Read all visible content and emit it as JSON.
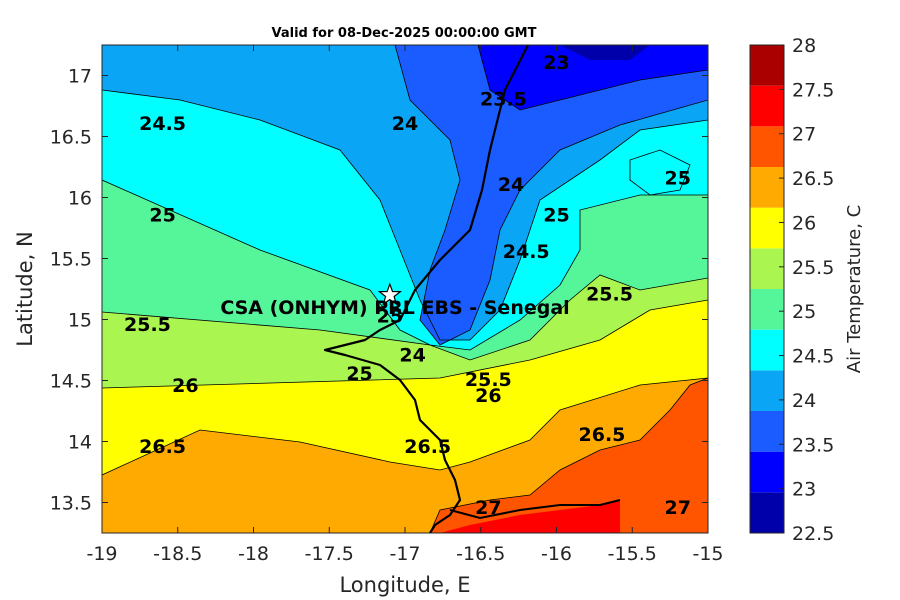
{
  "chart_data": {
    "type": "contour",
    "title": "Valid for 08-Dec-2025 00:00:00 GMT",
    "xlabel": "Longitude, E",
    "ylabel": "Latitude, N",
    "xlim": [
      -19,
      -15
    ],
    "ylim": [
      13.25,
      17.25
    ],
    "xticks": [
      "-19",
      "-18.5",
      "-18",
      "-17.5",
      "-17",
      "-16.5",
      "-16",
      "-15.5",
      "-15"
    ],
    "yticks": [
      "17",
      "16.5",
      "16",
      "15.5",
      "15",
      "14.5",
      "14",
      "13.5"
    ],
    "colorbar": {
      "label": "Air Temperature, C",
      "range": [
        22.5,
        28
      ],
      "ticks": [
        "28",
        "27.5",
        "27",
        "26.5",
        "26",
        "25.5",
        "25",
        "24.5",
        "24",
        "23.5",
        "23",
        "22.5"
      ],
      "colors": [
        "#0000aa",
        "#0000ff",
        "#1a5cff",
        "#0aa6f5",
        "#00ffff",
        "#55f59a",
        "#aaf550",
        "#ffff00",
        "#ffaa00",
        "#ff5500",
        "#ff0000",
        "#aa0000"
      ]
    },
    "contour_labels": [
      {
        "text": "24.5",
        "lon": -18.6,
        "lat": 16.6
      },
      {
        "text": "24",
        "lon": -17.0,
        "lat": 16.6
      },
      {
        "text": "23",
        "lon": -16.0,
        "lat": 17.1
      },
      {
        "text": "23.5",
        "lon": -16.35,
        "lat": 16.8
      },
      {
        "text": "24",
        "lon": -16.3,
        "lat": 16.1
      },
      {
        "text": "25",
        "lon": -15.2,
        "lat": 16.15
      },
      {
        "text": "25",
        "lon": -18.6,
        "lat": 15.85
      },
      {
        "text": "25",
        "lon": -16.0,
        "lat": 15.85
      },
      {
        "text": "24.5",
        "lon": -16.2,
        "lat": 15.55
      },
      {
        "text": "25.5",
        "lon": -15.65,
        "lat": 15.2
      },
      {
        "text": "25",
        "lon": -17.1,
        "lat": 15.02
      },
      {
        "text": "25.5",
        "lon": -18.7,
        "lat": 14.95
      },
      {
        "text": "24",
        "lon": -16.95,
        "lat": 14.7
      },
      {
        "text": "25",
        "lon": -17.3,
        "lat": 14.55
      },
      {
        "text": "25.5",
        "lon": -16.45,
        "lat": 14.5
      },
      {
        "text": "26",
        "lon": -18.45,
        "lat": 14.45
      },
      {
        "text": "26",
        "lon": -16.45,
        "lat": 14.37
      },
      {
        "text": "26.5",
        "lon": -15.7,
        "lat": 14.05
      },
      {
        "text": "26.5",
        "lon": -18.6,
        "lat": 13.95
      },
      {
        "text": "26.5",
        "lon": -16.85,
        "lat": 13.95
      },
      {
        "text": "27",
        "lon": -16.45,
        "lat": 13.45
      },
      {
        "text": "27",
        "lon": -15.2,
        "lat": 13.45
      }
    ],
    "station": {
      "name": "CSA (ONHYM) PRL EBS  - Senegal",
      "lon": -17.1,
      "lat": 15.2
    }
  }
}
